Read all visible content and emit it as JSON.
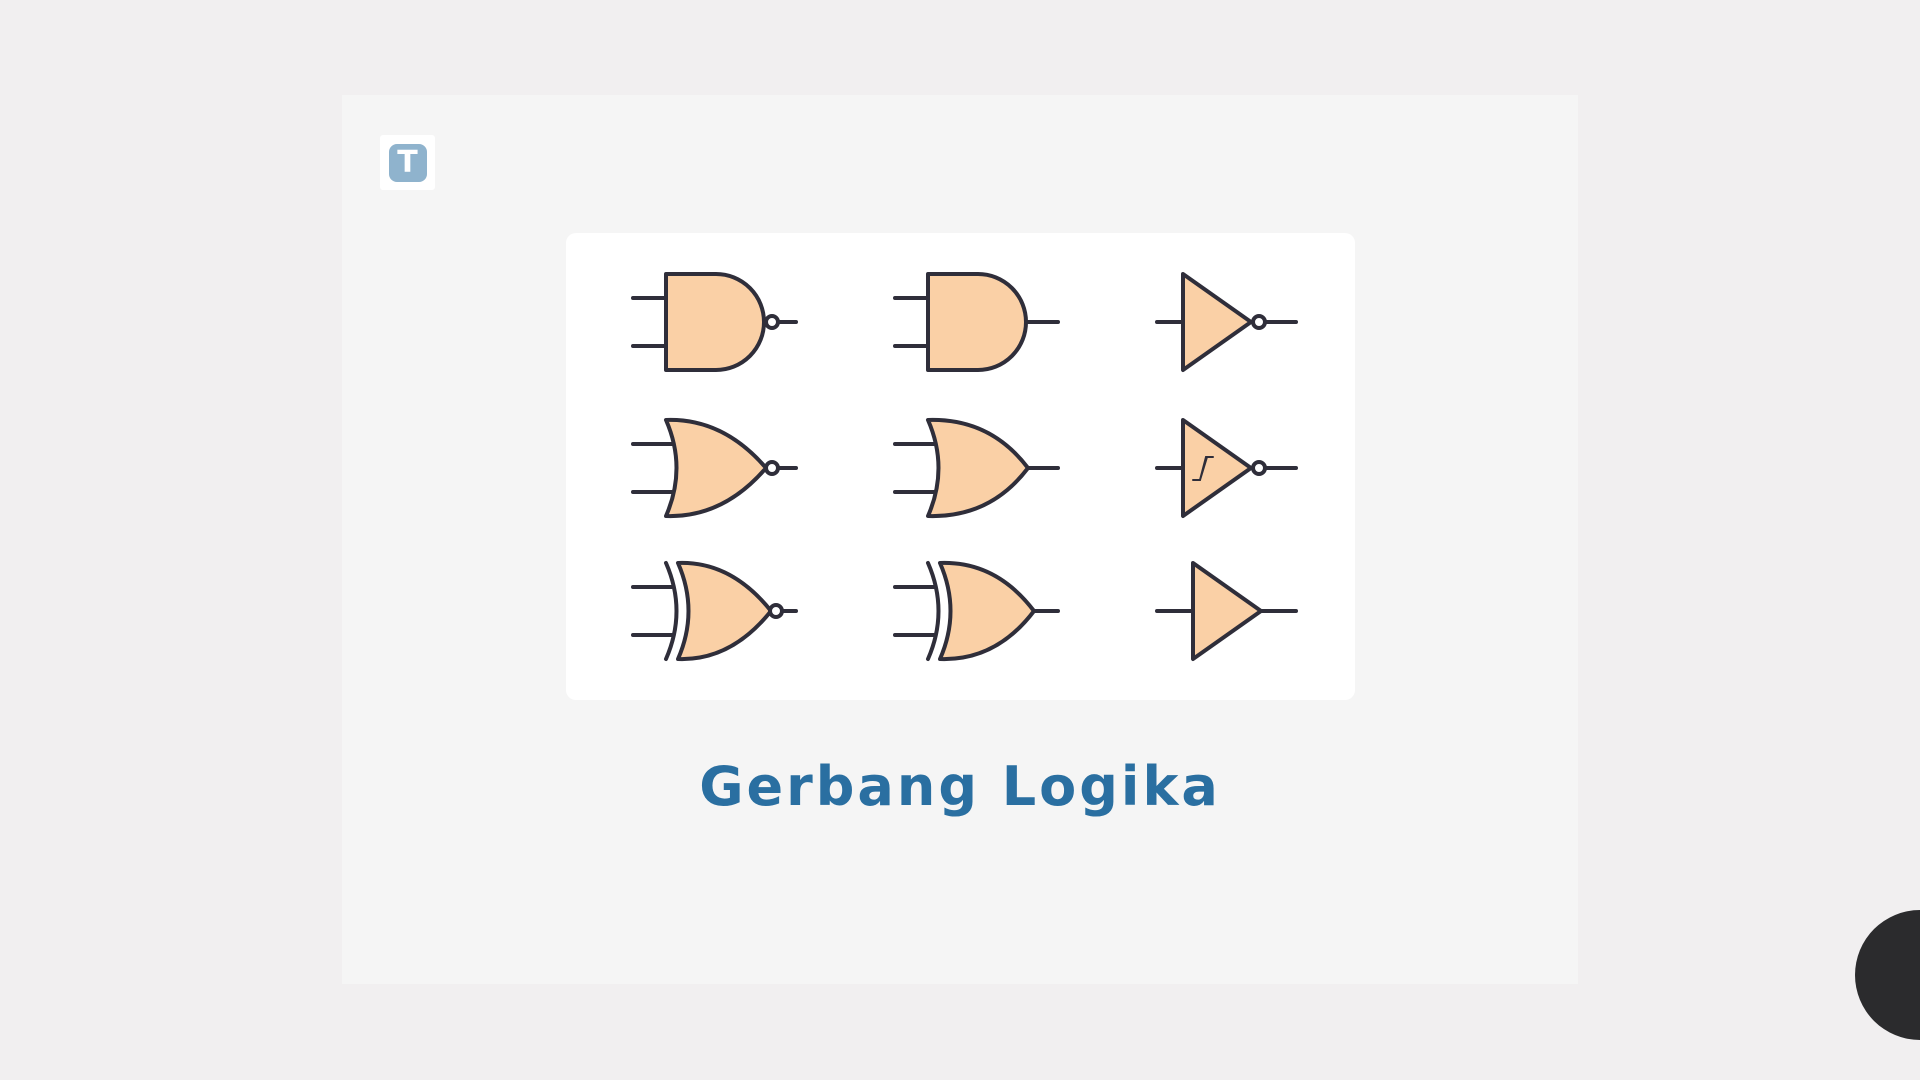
{
  "logo": {
    "letter": "T",
    "icon": "t-logo-icon",
    "color": "#8fb3cd"
  },
  "title": "Gerbang Logika",
  "colors": {
    "gate_fill": "#fad0a6",
    "gate_stroke": "#2f2e3a",
    "title": "#2a6fa1",
    "background": "#f1eff0"
  },
  "gates": [
    {
      "id": "nand",
      "icon": "nand-gate-icon"
    },
    {
      "id": "and",
      "icon": "and-gate-icon"
    },
    {
      "id": "not",
      "icon": "not-gate-icon"
    },
    {
      "id": "nor",
      "icon": "nor-gate-icon"
    },
    {
      "id": "or",
      "icon": "or-gate-icon"
    },
    {
      "id": "schmitt-not",
      "icon": "schmitt-trigger-inverter-icon"
    },
    {
      "id": "xnor",
      "icon": "xnor-gate-icon"
    },
    {
      "id": "xor",
      "icon": "xor-gate-icon"
    },
    {
      "id": "buffer",
      "icon": "buffer-gate-icon"
    }
  ]
}
